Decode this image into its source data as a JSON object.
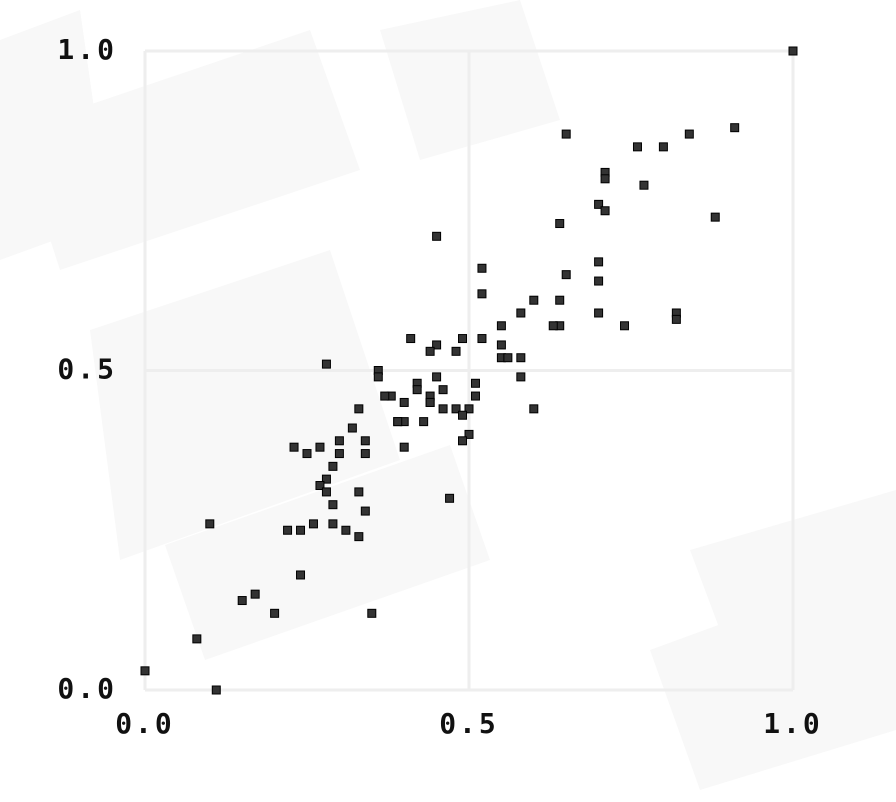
{
  "chart_data": {
    "type": "scatter",
    "color": "#333333",
    "x": [
      1.0,
      0.91,
      0.84,
      0.65,
      0.76,
      0.8,
      0.71,
      0.71,
      0.77,
      0.7,
      0.71,
      0.88,
      0.64,
      0.45,
      0.7,
      0.52,
      0.65,
      0.7,
      0.52,
      0.6,
      0.64,
      0.58,
      0.7,
      0.82,
      0.82,
      0.74,
      0.64,
      0.63,
      0.55,
      0.41,
      0.49,
      0.52,
      0.55,
      0.45,
      0.48,
      0.44,
      0.28,
      0.58,
      0.55,
      0.56,
      0.36,
      0.58,
      0.36,
      0.45,
      0.51,
      0.38,
      0.42,
      0.42,
      0.46,
      0.37,
      0.4,
      0.33,
      0.44,
      0.44,
      0.48,
      0.44,
      0.46,
      0.5,
      0.49,
      0.6,
      0.51,
      0.39,
      0.4,
      0.39,
      0.43,
      0.32,
      0.3,
      0.34,
      0.5,
      0.49,
      0.4,
      0.23,
      0.27,
      0.3,
      0.25,
      0.34,
      0.29,
      0.28,
      0.27,
      0.28,
      0.33,
      0.47,
      0.29,
      0.34,
      0.1,
      0.26,
      0.29,
      0.31,
      0.24,
      0.22,
      0.33,
      0.24,
      0.17,
      0.15,
      0.35,
      0.2,
      0.08,
      0.0,
      0.11
    ],
    "values": [
      1.0,
      0.88,
      0.87,
      0.87,
      0.85,
      0.85,
      0.81,
      0.8,
      0.79,
      0.76,
      0.75,
      0.74,
      0.73,
      0.71,
      0.67,
      0.66,
      0.65,
      0.64,
      0.62,
      0.61,
      0.61,
      0.59,
      0.59,
      0.59,
      0.58,
      0.57,
      0.57,
      0.57,
      0.57,
      0.55,
      0.55,
      0.55,
      0.54,
      0.54,
      0.53,
      0.53,
      0.51,
      0.52,
      0.52,
      0.52,
      0.5,
      0.49,
      0.49,
      0.49,
      0.48,
      0.46,
      0.48,
      0.47,
      0.47,
      0.46,
      0.45,
      0.44,
      0.46,
      0.45,
      0.44,
      0.45,
      0.44,
      0.44,
      0.43,
      0.44,
      0.46,
      0.42,
      0.42,
      0.42,
      0.42,
      0.41,
      0.39,
      0.39,
      0.4,
      0.39,
      0.38,
      0.38,
      0.38,
      0.37,
      0.37,
      0.37,
      0.35,
      0.33,
      0.32,
      0.31,
      0.31,
      0.3,
      0.29,
      0.28,
      0.26,
      0.26,
      0.26,
      0.25,
      0.25,
      0.25,
      0.24,
      0.18,
      0.15,
      0.14,
      0.12,
      0.12,
      0.08,
      0.03,
      0.0
    ],
    "xlim": [
      0,
      1
    ],
    "ylim": [
      0,
      1
    ],
    "xticks": [
      {
        "value": 0,
        "label": "0.0"
      },
      {
        "value": 0.5,
        "label": "0.5"
      },
      {
        "value": 1,
        "label": "1.0"
      }
    ],
    "yticks": [
      {
        "value": 0,
        "label": "0.0"
      },
      {
        "value": 0.5,
        "label": "0.5"
      },
      {
        "value": 1,
        "label": "1.0"
      }
    ],
    "grid": true
  }
}
